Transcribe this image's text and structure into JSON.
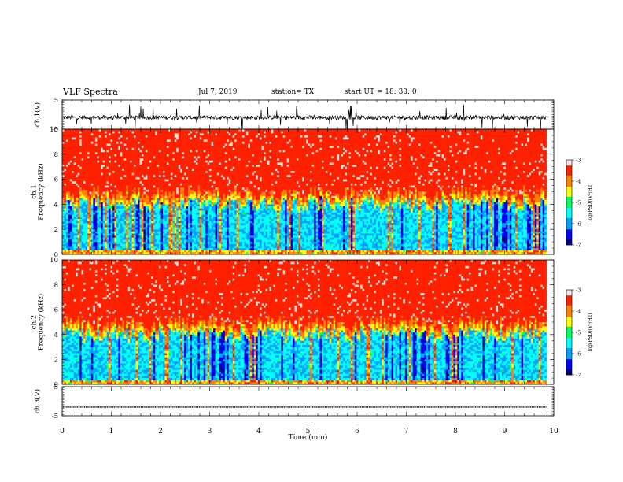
{
  "header": {
    "title": "VLF Spectra",
    "date": "Jul  7, 2019",
    "station": "station= TX",
    "start": "start  UT =  18: 30: 0"
  },
  "chart_data": [
    {
      "type": "line",
      "panel": "ch1-waveform",
      "ylabel": "ch.1(V)",
      "ylim": [
        -5,
        5
      ],
      "yticks": [
        5,
        -5
      ],
      "xlim": [
        0,
        10
      ],
      "series": [
        {
          "values": "noisy waveform centred near -1 V, excursions about -5 to +5 V"
        }
      ]
    },
    {
      "type": "heatmap",
      "panel": "ch1-spectrogram",
      "ylabel": "ch.1\nFrequency  (kHz)",
      "ylim": [
        0,
        10
      ],
      "yticks": [
        0,
        2,
        4,
        6,
        8,
        10
      ],
      "xlim": [
        0,
        10
      ],
      "colorbar": {
        "label": "log(PSD)(V²/Hz)",
        "range": [
          -7,
          -3
        ],
        "ticks": [
          -3,
          -4,
          -5,
          -6,
          -7
        ]
      },
      "noise_floor_khz": 4.5
    },
    {
      "type": "heatmap",
      "panel": "ch2-spectrogram",
      "ylabel": "ch.2\nFrequency  (kHz)",
      "ylim": [
        0,
        10
      ],
      "yticks": [
        0,
        2,
        4,
        6,
        8,
        10
      ],
      "xlim": [
        0,
        10
      ],
      "colorbar": {
        "label": "log(PSD)(V²/Hz)",
        "range": [
          -7,
          -3
        ],
        "ticks": [
          -3,
          -4,
          -5,
          -6,
          -7
        ]
      },
      "noise_floor_khz": 4.5
    },
    {
      "type": "line",
      "panel": "ch3-waveform",
      "ylabel": "ch.3(V)",
      "ylim": [
        -5,
        5
      ],
      "yticks": [
        5,
        -5
      ],
      "xlim": [
        0,
        10
      ],
      "series": [
        {
          "values": "flat at about -2 V"
        }
      ]
    }
  ],
  "axes": {
    "xlabel": "Time  (min)",
    "xticks": [
      0,
      1,
      2,
      3,
      4,
      5,
      6,
      7,
      8,
      9,
      10
    ]
  },
  "colors": {
    "colormap": [
      "#000080",
      "#0000ff",
      "#00a0ff",
      "#00ffff",
      "#00ff60",
      "#ffff00",
      "#ff8000",
      "#ff2000",
      "#ffe0e0"
    ],
    "waveform": "#000000"
  }
}
